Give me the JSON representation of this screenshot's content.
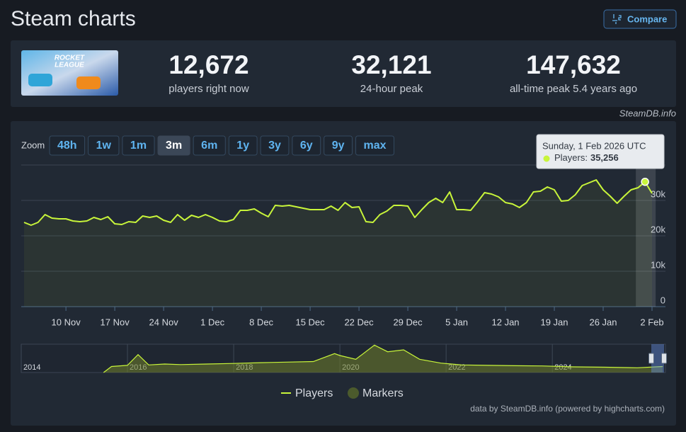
{
  "header": {
    "title": "Steam charts",
    "compare": "Compare"
  },
  "game": {
    "logo_lines": [
      "ROCKET",
      "LEAGUE"
    ]
  },
  "stats": [
    {
      "value": "12,672",
      "label": "players right now"
    },
    {
      "value": "32,121",
      "label": "24-hour peak"
    },
    {
      "value": "147,632",
      "label": "all-time peak 5.4 years ago"
    }
  ],
  "credit_top": "SteamDB.info",
  "zoom": {
    "label": "Zoom",
    "buttons": [
      "48h",
      "1w",
      "1m",
      "3m",
      "6m",
      "1y",
      "3y",
      "6y",
      "9y",
      "max"
    ],
    "active": 3
  },
  "chart_data": {
    "type": "line",
    "categories": [
      null,
      null,
      null,
      null,
      null,
      null,
      "10 Nov",
      null,
      null,
      null,
      null,
      null,
      null,
      "17 Nov",
      null,
      null,
      null,
      null,
      null,
      null,
      "24 Nov",
      null,
      null,
      null,
      null,
      null,
      null,
      "1 Dec",
      null,
      null,
      null,
      null,
      null,
      null,
      "8 Dec",
      null,
      null,
      null,
      null,
      null,
      null,
      "15 Dec",
      null,
      null,
      null,
      null,
      null,
      null,
      "22 Dec",
      null,
      null,
      null,
      null,
      null,
      null,
      "29 Dec",
      null,
      null,
      null,
      null,
      null,
      null,
      "5 Jan",
      null,
      null,
      null,
      null,
      null,
      null,
      "12 Jan",
      null,
      null,
      null,
      null,
      null,
      null,
      "19 Jan",
      null,
      null,
      null,
      null,
      null,
      null,
      "26 Jan",
      null,
      null,
      null,
      null,
      null,
      null,
      "2 Feb"
    ],
    "series": [
      {
        "name": "Players",
        "color": "#c8f53a",
        "values": [
          23800,
          23000,
          23800,
          26000,
          25000,
          24800,
          24800,
          24200,
          24000,
          24200,
          25200,
          24600,
          25400,
          23400,
          23200,
          24000,
          23800,
          25600,
          25200,
          25600,
          24400,
          23800,
          26000,
          24400,
          25800,
          25200,
          26000,
          25200,
          24200,
          24000,
          24600,
          27200,
          27200,
          27600,
          26400,
          25400,
          28600,
          28400,
          28600,
          28200,
          27800,
          27400,
          27400,
          27400,
          28400,
          27200,
          29400,
          28000,
          28200,
          24000,
          23800,
          26000,
          27000,
          28600,
          28600,
          28400,
          25200,
          27400,
          29400,
          30600,
          29400,
          32400,
          27400,
          27400,
          27200,
          29600,
          32200,
          31800,
          31000,
          29400,
          29000,
          28000,
          29400,
          32400,
          32600,
          33800,
          33000,
          29800,
          30000,
          31600,
          34200,
          35000,
          35800,
          33000,
          31200,
          29200,
          31200,
          33000,
          33600,
          35256,
          32000
        ]
      },
      {
        "name": "Markers",
        "color": "#4b5a2c"
      }
    ],
    "ylim": [
      0,
      40000
    ],
    "yticks": [
      0,
      {
        "value": 10000,
        "label": "10k"
      },
      {
        "value": 20000,
        "label": "20k"
      },
      {
        "value": 30000,
        "label": "30k"
      }
    ],
    "grid": true,
    "tooltip": {
      "date": "Sunday, 1 Feb 2026 UTC",
      "label": "Players:",
      "value": "35,256",
      "index": 89
    },
    "navigator": {
      "x": [
        2015.55,
        2015.7,
        2016.0,
        2016.2,
        2016.4,
        2016.7,
        2017.0,
        2017.5,
        2018.0,
        2018.5,
        2019.0,
        2019.5,
        2019.9,
        2020.0,
        2020.3,
        2020.65,
        2020.9,
        2021.2,
        2021.5,
        2021.9,
        2022.3,
        2022.8,
        2023.3,
        2023.8,
        2024.4,
        2025.0,
        2025.6,
        2026.08
      ],
      "values": [
        0,
        32000,
        38000,
        95000,
        40000,
        45000,
        42000,
        45000,
        48000,
        52000,
        55000,
        58000,
        100000,
        90000,
        70000,
        145000,
        110000,
        120000,
        70000,
        50000,
        40000,
        38000,
        36000,
        35000,
        30000,
        28000,
        25000,
        32000
      ],
      "xlim": [
        2014,
        2026.13
      ],
      "xticks": [
        2014,
        2016,
        2018,
        2020,
        2022,
        2024
      ],
      "ylim": [
        0,
        150000
      ]
    },
    "credits": "data by SteamDB.info (powered by highcharts.com)"
  }
}
